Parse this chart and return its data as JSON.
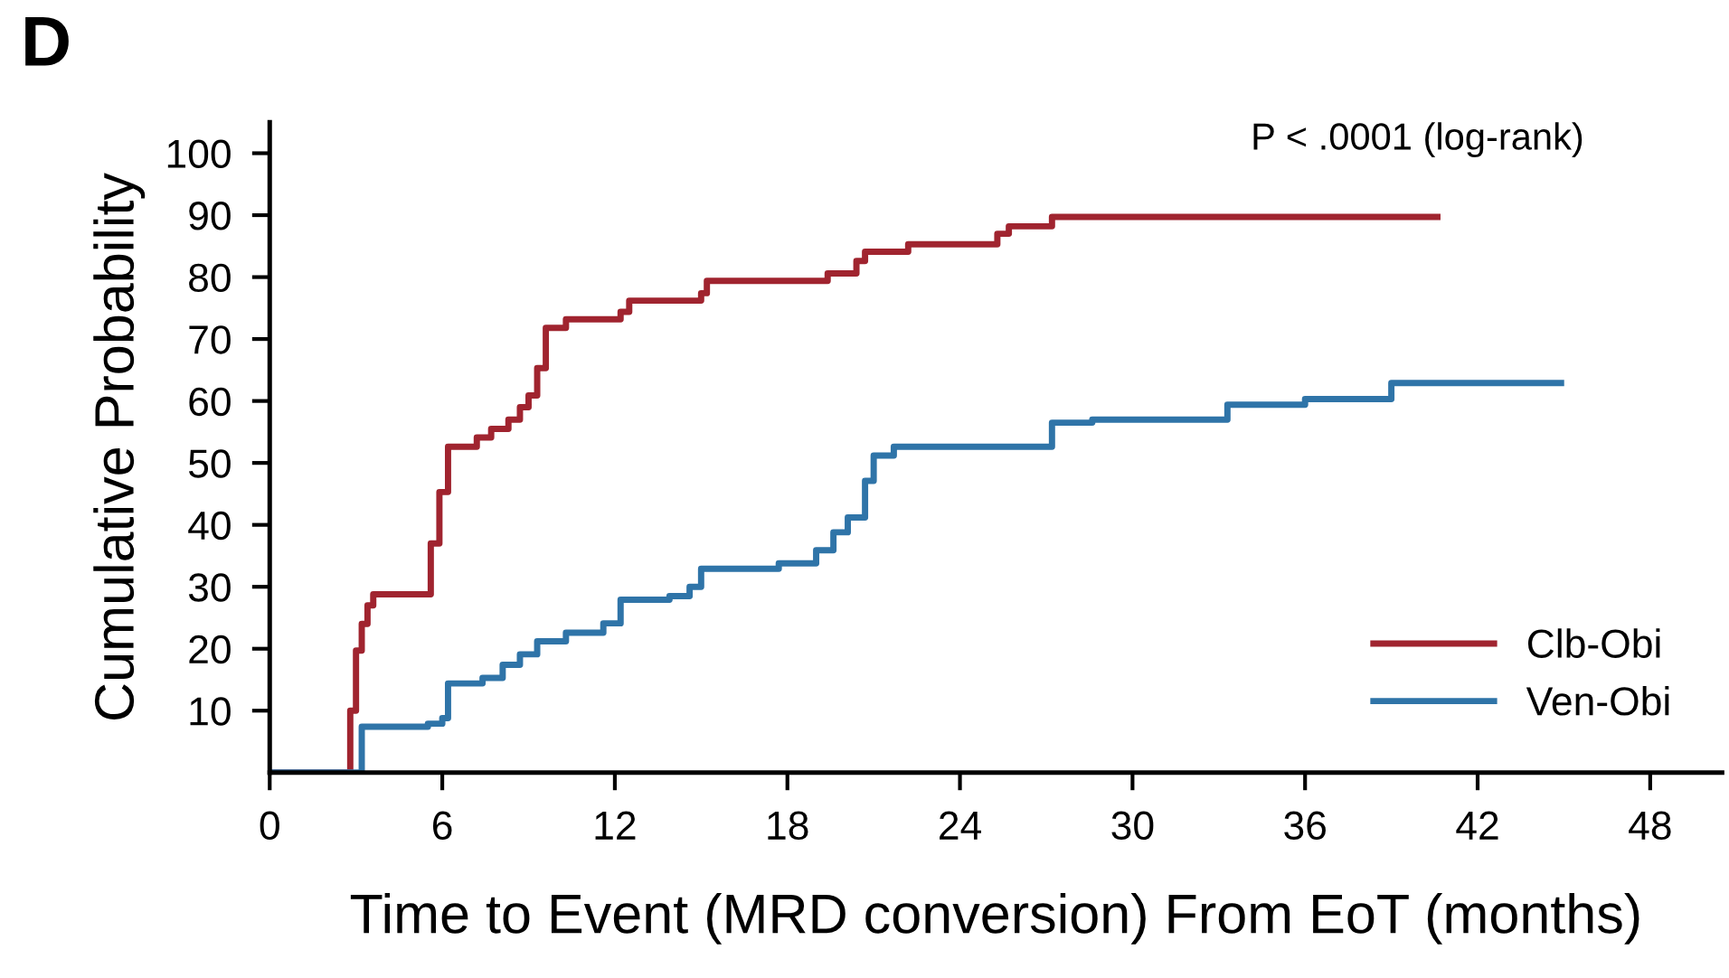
{
  "chart_data": {
    "type": "step",
    "title": "D",
    "xlabel": "Time to Event (MRD conversion) From EoT (months)",
    "ylabel": "Cumulative Probability",
    "annotations": [
      "P < .0001 (log-rank)"
    ],
    "xlim": [
      0,
      50.5
    ],
    "xticks": [
      0,
      6,
      12,
      18,
      24,
      30,
      36,
      42,
      48
    ],
    "ylim": [
      0,
      105
    ],
    "yticks": [
      10,
      20,
      30,
      40,
      50,
      60,
      70,
      80,
      90,
      100
    ],
    "grid": false,
    "legend": "bottom right",
    "line_style": "solid",
    "series": [
      {
        "name": "Clb-Obi",
        "color": "#a0242f",
        "x": [
          0,
          2.6,
          2.8,
          3.0,
          3.2,
          3.4,
          3.6,
          5.3,
          5.6,
          5.9,
          6.2,
          7.2,
          7.7,
          8.3,
          8.7,
          9.0,
          9.3,
          9.6,
          10.3,
          12.2,
          12.5,
          15.0,
          15.2,
          19.4,
          20.4,
          20.7,
          22.2,
          25.3,
          25.7,
          27.2,
          40.6
        ],
        "values": [
          0,
          0,
          10,
          19.7,
          24,
          27,
          28.8,
          28.8,
          37,
          45.3,
          52.6,
          54.1,
          55.5,
          57,
          59,
          60.9,
          65.3,
          71.8,
          73.2,
          74.4,
          76.2,
          77.4,
          79.4,
          80.6,
          82.6,
          84.1,
          85.3,
          87,
          88.2,
          89.7,
          89.7
        ]
      },
      {
        "name": "Ven-Obi",
        "color": "#2f74a8",
        "x": [
          0,
          3.0,
          3.2,
          5.5,
          6.0,
          6.2,
          7.4,
          8.1,
          8.7,
          9.3,
          10.3,
          11.6,
          12.2,
          13.9,
          14.6,
          15.0,
          17.7,
          19.0,
          19.6,
          20.1,
          20.7,
          21.0,
          21.7,
          26.1,
          27.2,
          28.6,
          32.8,
          33.3,
          36.0,
          38.8,
          39.0,
          44.9
        ],
        "values": [
          0,
          0,
          7.4,
          7.9,
          8.8,
          14.4,
          15.3,
          17.4,
          19.1,
          21.2,
          22.6,
          24.1,
          27.9,
          28.5,
          30,
          32.9,
          33.8,
          35.9,
          38.8,
          41.2,
          47.1,
          51.2,
          52.6,
          52.6,
          56.5,
          57,
          57,
          59.4,
          60.3,
          60.3,
          62.9,
          62.9
        ]
      }
    ]
  }
}
